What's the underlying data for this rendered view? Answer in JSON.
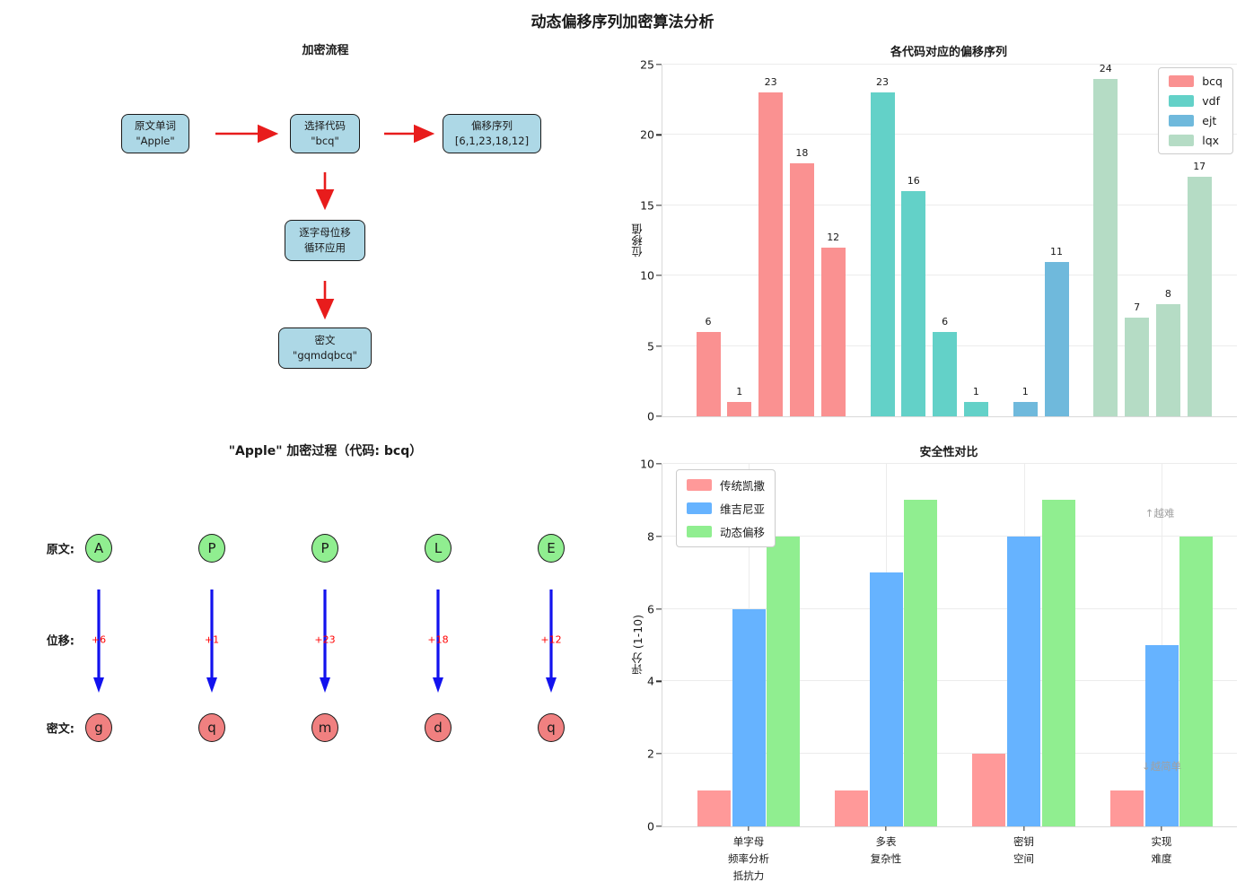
{
  "figure_title": "动态偏移序列加密算法分析",
  "flowchart": {
    "title": "加密流程",
    "arrow_color": "#e81c1c",
    "box_color": "#add8e6",
    "boxes": [
      {
        "line1": "原文单词",
        "line2": "\"Apple\""
      },
      {
        "line1": "选择代码",
        "line2": "\"bcq\""
      },
      {
        "line1": "偏移序列",
        "line2": "[6,1,23,18,12]"
      },
      {
        "line1": "逐字母位移",
        "line2": "循环应用"
      },
      {
        "line1": "密文",
        "line2": "\"gqmdqbcq\""
      }
    ]
  },
  "apple_process": {
    "title": "\"Apple\" 加密过程（代码: bcq）",
    "row_labels": {
      "plain": "原文:",
      "shift": "位移:",
      "cipher": "密文:"
    },
    "plain_letters": [
      "A",
      "P",
      "P",
      "L",
      "E"
    ],
    "shifts": [
      "+6",
      "+1",
      "+23",
      "+18",
      "+12"
    ],
    "cipher_letters": [
      "g",
      "q",
      "m",
      "d",
      "q"
    ],
    "colors": {
      "plain_circle": "#90ee90",
      "cipher_circle": "#f08080",
      "arrow": "#1212ee",
      "shift_text": "#ff0000"
    }
  },
  "chart_data": [
    {
      "type": "bar",
      "title": "各代码对应的偏移序列",
      "ylabel": "位移值",
      "ylim": [
        0,
        25
      ],
      "yticks": [
        0,
        5,
        10,
        15,
        20,
        25
      ],
      "grid": "horizontal",
      "legend_position": "upper right",
      "bar_value_labels": true,
      "series": [
        {
          "name": "bcq",
          "color": "#fa9191",
          "values": [
            6,
            1,
            23,
            18,
            12
          ]
        },
        {
          "name": "vdf",
          "color": "#63d1c8",
          "values": [
            23,
            16,
            6,
            1
          ]
        },
        {
          "name": "ejt",
          "color": "#6fb9dc",
          "values": [
            1,
            11
          ]
        },
        {
          "name": "lqx",
          "color": "#b5dcc5",
          "values": [
            24,
            7,
            8,
            17
          ]
        }
      ]
    },
    {
      "type": "bar",
      "title": "安全性对比",
      "ylabel": "评分 (1-10)",
      "ylim": [
        0,
        10
      ],
      "yticks": [
        0,
        2,
        4,
        6,
        8,
        10
      ],
      "grid": "both",
      "legend_position": "upper left",
      "categories": [
        "单字母\n频率分析\n抵抗力",
        "多表\n复杂性",
        "密钥\n空间",
        "实现\n难度"
      ],
      "series": [
        {
          "name": "传统凯撒",
          "color": "#ff9999",
          "values": [
            1,
            1,
            2,
            1
          ]
        },
        {
          "name": "维吉尼亚",
          "color": "#66b3ff",
          "values": [
            6,
            7,
            8,
            5
          ]
        },
        {
          "name": "动态偏移",
          "color": "#90ee90",
          "values": [
            8,
            9,
            9,
            8
          ]
        }
      ],
      "annotations": [
        {
          "text": "↑越难",
          "position": "upper-right"
        },
        {
          "text": "↓越简单",
          "position": "lower-right"
        }
      ]
    }
  ]
}
